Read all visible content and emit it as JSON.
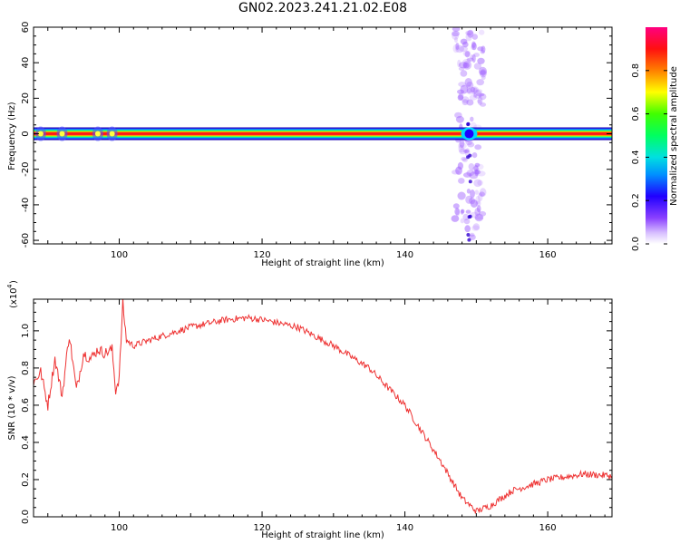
{
  "title": "GN02.2023.241.21.02.E08",
  "chart_data": [
    {
      "type": "heatmap",
      "xlabel": "Height of straight line (km)",
      "ylabel": "Frequency (Hz)",
      "xlim": [
        88,
        169
      ],
      "ylim": [
        -62,
        60
      ],
      "xticks": [
        100,
        120,
        140,
        160
      ],
      "yticks": [
        60,
        40,
        20,
        0,
        -20,
        -40,
        -60
      ],
      "colorbar": {
        "label": "Normalized spectral amplitude",
        "range": [
          0,
          1
        ],
        "ticks": [
          0.0,
          0.2,
          0.4,
          0.6,
          0.8
        ],
        "colormap": [
          "#ffffff",
          "#b480ff",
          "#2000ff",
          "#00c8ff",
          "#00ff40",
          "#ffff00",
          "#ff8000",
          "#ff0000",
          "#ff0080"
        ]
      },
      "band": {
        "frequency_hz": 0,
        "x_range": [
          88,
          169
        ],
        "peak_amplitude": 1.0,
        "gap_at_km": 149
      },
      "scatter_column": {
        "x_center_km": 149,
        "x_halfwidth_km": 2,
        "frequency_range_hz": [
          -60,
          60
        ]
      },
      "left_blobs_km": [
        89,
        92,
        97,
        99
      ]
    },
    {
      "type": "line",
      "xlabel": "Height of straight line (km)",
      "ylabel": "SNR (10 * v/v)",
      "scale_note": "(x10",
      "scale_exp": "4",
      "xlim": [
        88,
        169
      ],
      "ylim": [
        0,
        1.17
      ],
      "xticks": [
        100,
        120,
        140,
        160
      ],
      "yticks": [
        0.0,
        0.2,
        0.4,
        0.6,
        0.8,
        1.0
      ],
      "color": "#ee3333",
      "x": [
        88,
        89,
        90,
        91,
        92,
        93,
        94,
        95,
        96,
        97,
        98,
        99,
        99.5,
        100,
        100.5,
        101,
        102,
        105,
        110,
        115,
        118,
        120,
        125,
        130,
        135,
        140,
        145,
        148,
        150,
        152,
        155,
        160,
        165,
        169
      ],
      "y": [
        0.72,
        0.78,
        0.6,
        0.85,
        0.65,
        0.98,
        0.68,
        0.88,
        0.85,
        0.9,
        0.88,
        0.9,
        0.68,
        0.75,
        1.15,
        0.95,
        0.92,
        0.96,
        1.02,
        1.06,
        1.07,
        1.06,
        1.02,
        0.92,
        0.8,
        0.6,
        0.3,
        0.1,
        0.03,
        0.06,
        0.14,
        0.2,
        0.23,
        0.22
      ]
    }
  ]
}
